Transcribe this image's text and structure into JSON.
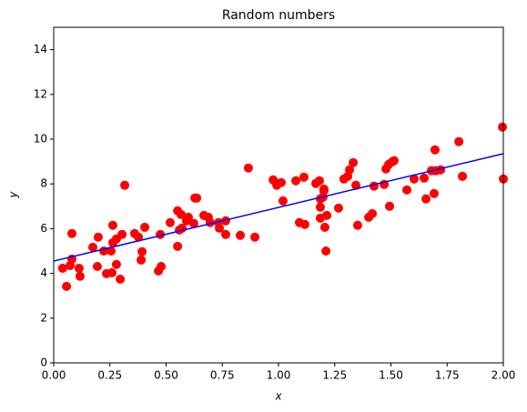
{
  "chart_data": {
    "type": "scatter",
    "title": "Random numbers",
    "x_label": "x",
    "y_label": "y",
    "xlim": [
      0,
      2
    ],
    "ylim": [
      0,
      15
    ],
    "xticks": [
      {
        "value": 0,
        "label": "0.00"
      },
      {
        "value": 0.25,
        "label": "0.25"
      },
      {
        "value": 0.5,
        "label": "0.50"
      },
      {
        "value": 0.75,
        "label": "0.75"
      },
      {
        "value": 1,
        "label": "1.00"
      },
      {
        "value": 1.25,
        "label": "1.25"
      },
      {
        "value": 1.5,
        "label": "1.50"
      },
      {
        "value": 1.75,
        "label": "1.75"
      },
      {
        "value": 2,
        "label": "2.00"
      }
    ],
    "yticks": [
      0,
      2,
      4,
      6,
      8,
      10,
      12,
      14
    ],
    "grid": false,
    "series": [
      {
        "color": "#ff0000",
        "x": [
          0.04,
          0.057,
          0.073,
          0.081,
          0.081,
          0.113,
          0.117,
          0.174,
          0.194,
          0.198,
          0.223,
          0.235,
          0.255,
          0.259,
          0.263,
          0.263,
          0.279,
          0.279,
          0.296,
          0.304,
          0.316,
          0.36,
          0.377,
          0.389,
          0.393,
          0.405,
          0.466,
          0.474,
          0.478,
          0.518,
          0.551,
          0.551,
          0.559,
          0.567,
          0.571,
          0.591,
          0.599,
          0.623,
          0.628,
          0.636,
          0.668,
          0.688,
          0.696,
          0.733,
          0.737,
          0.765,
          0.765,
          0.83,
          0.866,
          0.895,
          0.976,
          0.992,
          1.012,
          1.02,
          1.077,
          1.093,
          1.113,
          1.117,
          1.166,
          1.182,
          1.186,
          1.186,
          1.186,
          1.198,
          1.202,
          1.202,
          1.206,
          1.211,
          1.215,
          1.267,
          1.291,
          1.308,
          1.316,
          1.332,
          1.344,
          1.352,
          1.401,
          1.417,
          1.425,
          1.47,
          1.478,
          1.49,
          1.494,
          1.506,
          1.514,
          1.571,
          1.603,
          1.648,
          1.656,
          1.68,
          1.692,
          1.696,
          1.7,
          1.721,
          1.802,
          1.818,
          1.996,
          2.0
        ],
        "values": [
          4.23,
          3.42,
          4.35,
          5.78,
          4.64,
          4.23,
          3.87,
          5.17,
          4.31,
          5.62,
          5.0,
          3.99,
          5.0,
          4.03,
          5.37,
          6.15,
          5.54,
          4.4,
          3.74,
          5.74,
          7.94,
          5.78,
          5.62,
          4.6,
          4.97,
          6.06,
          4.11,
          5.74,
          4.31,
          6.27,
          6.8,
          5.21,
          5.94,
          6.63,
          6.02,
          6.35,
          6.51,
          6.23,
          7.37,
          7.37,
          6.59,
          6.51,
          6.27,
          6.27,
          6.02,
          6.35,
          5.74,
          5.7,
          8.71,
          5.62,
          8.18,
          7.94,
          8.06,
          7.24,
          8.14,
          6.27,
          8.3,
          6.19,
          8.02,
          8.14,
          7.33,
          6.96,
          6.47,
          7.41,
          7.77,
          7.69,
          6.06,
          5.0,
          6.59,
          6.92,
          8.22,
          8.34,
          8.63,
          8.95,
          7.94,
          6.15,
          6.51,
          6.67,
          7.9,
          7.98,
          8.67,
          8.87,
          7.0,
          8.99,
          9.04,
          7.73,
          8.22,
          8.26,
          7.33,
          8.59,
          7.57,
          9.52,
          8.59,
          8.63,
          9.89,
          8.34,
          10.54,
          8.22
        ]
      }
    ],
    "fit_line": {
      "color": "#0000ff",
      "x": [
        0,
        2
      ],
      "values": [
        4.55,
        9.35
      ]
    }
  }
}
